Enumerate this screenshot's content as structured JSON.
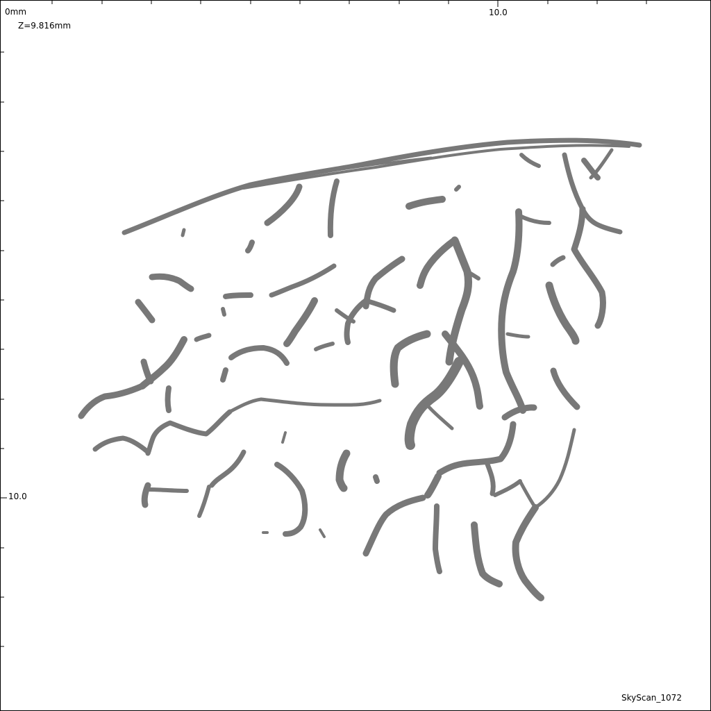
{
  "scan": {
    "origin_label": "0mm",
    "z_position": "Z=9.816mm",
    "x_axis_label": "10.0",
    "y_axis_label": "10.0",
    "brand": "SkyScan_1072"
  },
  "colors": {
    "background": "#ffffff",
    "trabecula": "#6a6a6a",
    "frame": "#000000"
  }
}
